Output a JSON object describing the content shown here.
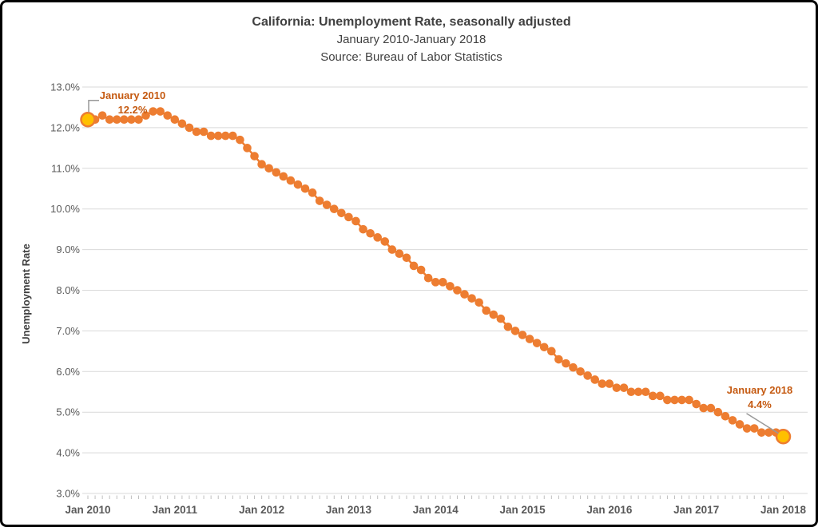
{
  "chart_data": {
    "type": "line",
    "title": "California: Unemployment Rate, seasonally adjusted",
    "subtitle": "January 2010-January 2018",
    "source_line": "Source: Bureau of Labor Statistics",
    "ylabel": "Unemployment Rate",
    "xlabel": "",
    "ylim": [
      3.0,
      13.0
    ],
    "grid": "horizontal",
    "legend": "none",
    "ytick_values": [
      3,
      4,
      5,
      6,
      7,
      8,
      9,
      10,
      11,
      12,
      13
    ],
    "ytick_labels": [
      "3.0%",
      "4.0%",
      "5.0%",
      "6.0%",
      "7.0%",
      "8.0%",
      "9.0%",
      "10.0%",
      "11.0%",
      "12.0%",
      "13.0%"
    ],
    "xtick_labels": [
      "Jan 2010",
      "Jan 2011",
      "Jan 2012",
      "Jan 2013",
      "Jan 2014",
      "Jan 2015",
      "Jan 2016",
      "Jan 2017",
      "Jan 2018"
    ],
    "months_per_xtick": 12,
    "series": [
      {
        "name": "California unemployment rate, seasonally adjusted (monthly, Jan 2010 - Jan 2018)",
        "monthly_values_percent": [
          12.2,
          12.2,
          12.3,
          12.2,
          12.2,
          12.2,
          12.2,
          12.2,
          12.3,
          12.4,
          12.4,
          12.3,
          12.2,
          12.1,
          12.0,
          11.9,
          11.9,
          11.8,
          11.8,
          11.8,
          11.8,
          11.7,
          11.5,
          11.3,
          11.1,
          11.0,
          10.9,
          10.8,
          10.7,
          10.6,
          10.5,
          10.4,
          10.2,
          10.1,
          10.0,
          9.9,
          9.8,
          9.7,
          9.5,
          9.4,
          9.3,
          9.2,
          9.0,
          8.9,
          8.8,
          8.6,
          8.5,
          8.3,
          8.2,
          8.2,
          8.1,
          8.0,
          7.9,
          7.8,
          7.7,
          7.5,
          7.4,
          7.3,
          7.1,
          7.0,
          6.9,
          6.8,
          6.7,
          6.6,
          6.5,
          6.3,
          6.2,
          6.1,
          6.0,
          5.9,
          5.8,
          5.7,
          5.7,
          5.6,
          5.6,
          5.5,
          5.5,
          5.5,
          5.4,
          5.4,
          5.3,
          5.3,
          5.3,
          5.3,
          5.2,
          5.1,
          5.1,
          5.0,
          4.9,
          4.8,
          4.7,
          4.6,
          4.6,
          4.5,
          4.5,
          4.5,
          4.4
        ]
      }
    ],
    "annotations": [
      {
        "label": "January 2010",
        "value": "12.2%",
        "point_index": 0
      },
      {
        "label": "January 2018",
        "value": "4.4%",
        "point_index": 96
      }
    ],
    "colors": {
      "line": "#ED7D31",
      "marker": "#ED7D31",
      "endpoint_fill": "#FFC000",
      "endpoint_stroke": "#ED7D31",
      "annotation_text": "#C55A11",
      "callout_line": "#999999",
      "gridline": "#D9D9D9",
      "axis_tick": "#BFBFBF",
      "title_text": "#404040",
      "axis_text": "#595959"
    }
  }
}
